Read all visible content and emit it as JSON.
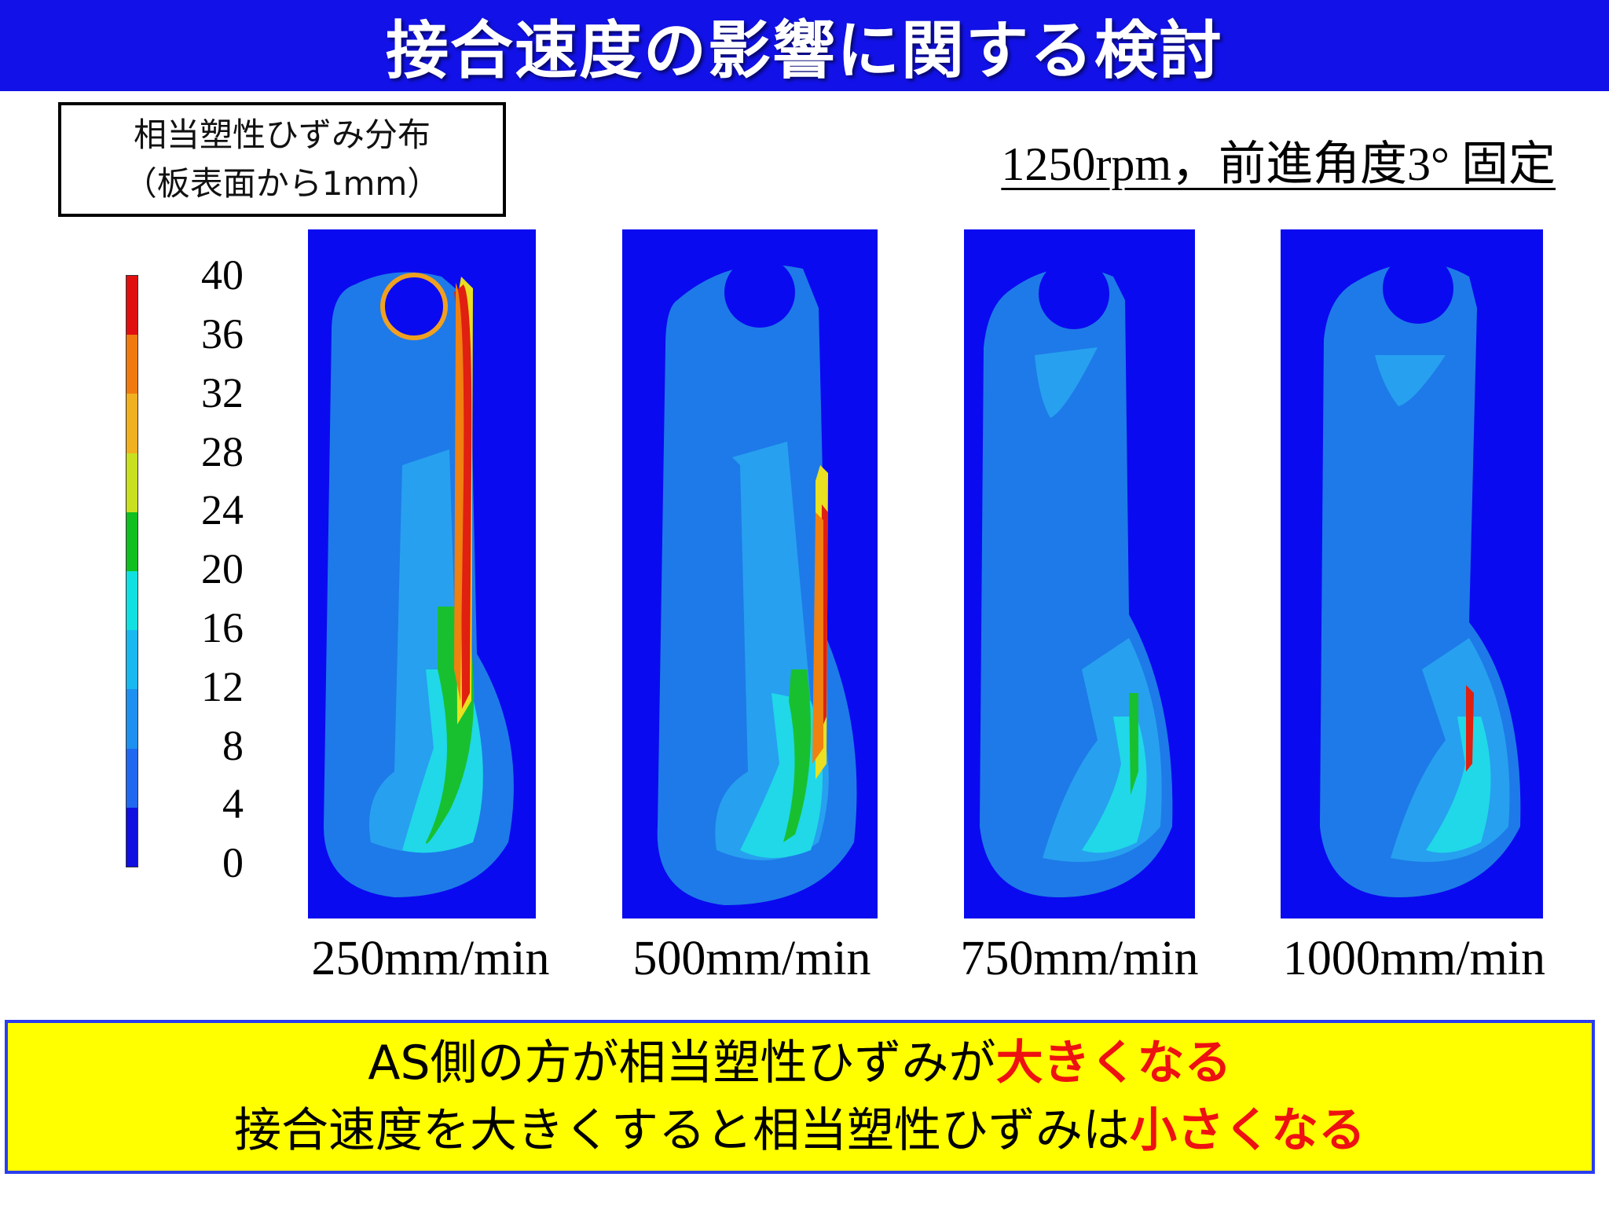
{
  "title": "接合速度の影響に関する検討",
  "legend_box": {
    "line1": "相当塑性ひずみ分布",
    "line2": "（板表面から1mm）"
  },
  "conditions": "1250rpm，前進角度3°  固定",
  "colorbar": {
    "ticks": [
      "40",
      "36",
      "32",
      "28",
      "24",
      "20",
      "16",
      "12",
      "8",
      "4",
      "0"
    ],
    "colors_top_to_bottom": [
      "#e01010",
      "#f07a10",
      "#f0b020",
      "#c8e020",
      "#10c020",
      "#10e0e0",
      "#18b8f0",
      "#1e90f0",
      "#2068f0",
      "#1010e0"
    ]
  },
  "panels": [
    {
      "label": "250mm/min",
      "intensity": "high"
    },
    {
      "label": "500mm/min",
      "intensity": "medium"
    },
    {
      "label": "750mm/min",
      "intensity": "low"
    },
    {
      "label": "1000mm/min",
      "intensity": "lowest"
    }
  ],
  "summary": {
    "line1_prefix": "AS側の方が相当塑性ひずみが",
    "line1_highlight": "大きくなる",
    "line2_prefix": "接合速度を大きくすると相当塑性ひずみは",
    "line2_highlight": "小さくなる"
  },
  "colors": {
    "title_bar": "#1212e8",
    "panel_background": "#0a0af0",
    "summary_background": "#ffff00",
    "highlight": "#ee1111"
  }
}
